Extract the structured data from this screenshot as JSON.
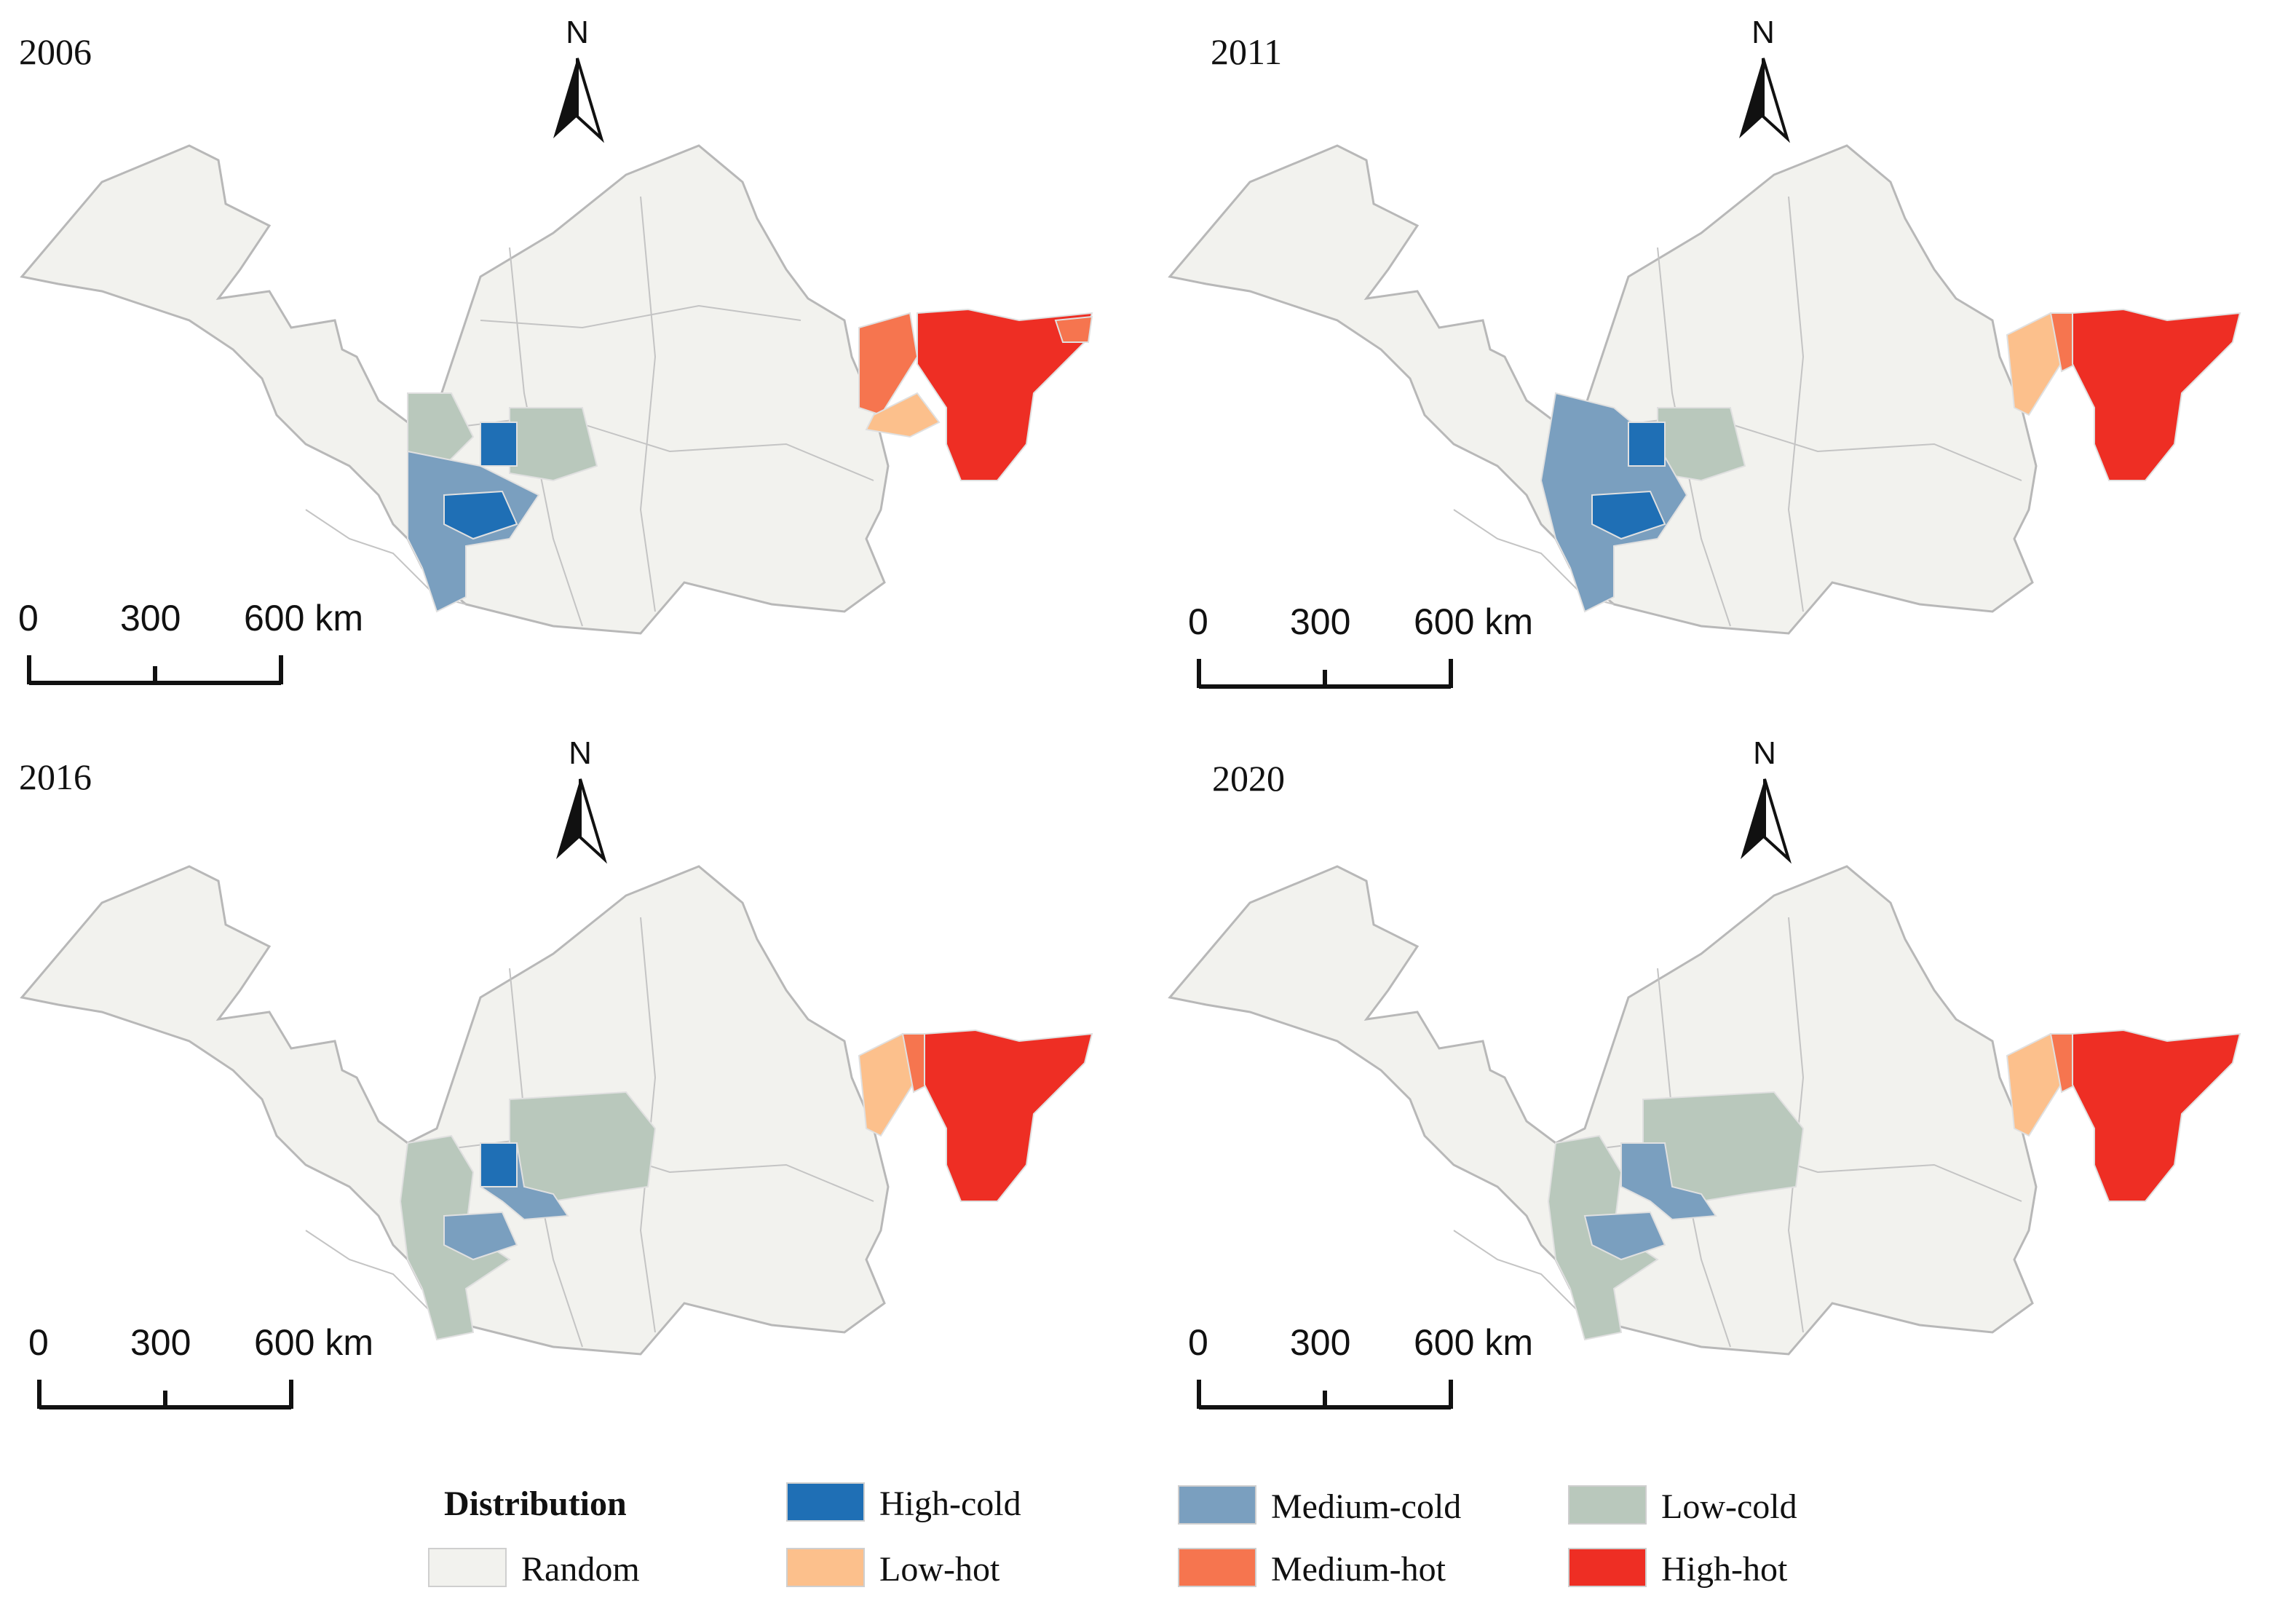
{
  "panels": [
    {
      "year": "2006",
      "north": "N",
      "scale": {
        "ticks": [
          "0",
          "300",
          "600 km"
        ]
      }
    },
    {
      "year": "2011",
      "north": "N",
      "scale": {
        "ticks": [
          "0",
          "300",
          "600 km"
        ]
      }
    },
    {
      "year": "2016",
      "north": "N",
      "scale": {
        "ticks": [
          "0",
          "300",
          "600 km"
        ]
      }
    },
    {
      "year": "2020",
      "north": "N",
      "scale": {
        "ticks": [
          "0",
          "300",
          "600 km"
        ]
      }
    }
  ],
  "legend": {
    "title": "Distribution",
    "items": [
      {
        "label": "Random",
        "color": "#f2f2ee"
      },
      {
        "label": "High-cold",
        "color": "#1f6fb5"
      },
      {
        "label": "Low-hot",
        "color": "#fcc08c"
      },
      {
        "label": "Medium-cold",
        "color": "#7a9fbf"
      },
      {
        "label": "Medium-hot",
        "color": "#f6754f"
      },
      {
        "label": "Low-cold",
        "color": "#b9c8bc"
      },
      {
        "label": "High-hot",
        "color": "#ee2e24"
      }
    ]
  },
  "icons": {
    "north_arrow": "north-arrow-icon"
  }
}
